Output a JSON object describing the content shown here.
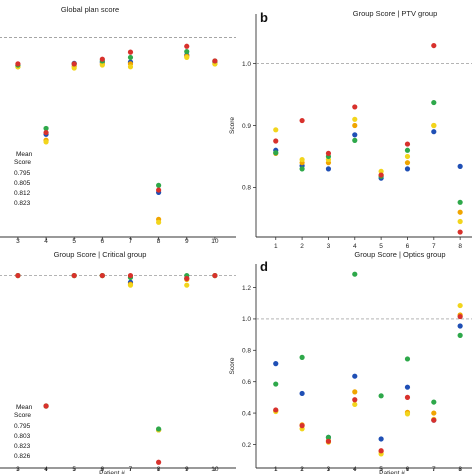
{
  "series_colors": {
    "Blue": "#1f4fb5",
    "Orange": "#f0a500",
    "Yellow": "#f2d51c",
    "Green": "#2ea84a",
    "Red": "#d8312c"
  },
  "chart_data": [
    {
      "type": "scatter",
      "letter": "",
      "title": "Global plan score",
      "xlabel": "",
      "ylabel": "",
      "x_ticks": [
        "3",
        "4",
        "5",
        "6",
        "7",
        "8",
        "9",
        "10"
      ],
      "y_ticks": [],
      "reference_line": 1.0,
      "ylim": [
        0.66,
        1.04
      ],
      "mean_label": [
        "Mean",
        "Score"
      ],
      "mean_values": [
        "0.795",
        "0.805",
        "0.812",
        "0.823"
      ],
      "series": [
        {
          "color": "Blue",
          "x": [
            3,
            4,
            5,
            6,
            7,
            8,
            9,
            10
          ],
          "y": [
            0.952,
            0.835,
            0.956,
            0.958,
            0.958,
            0.736,
            0.97,
            0.958
          ]
        },
        {
          "color": "Orange",
          "x": [
            3,
            4,
            5,
            6,
            7,
            8,
            9,
            10
          ],
          "y": [
            0.95,
            0.825,
            0.951,
            0.955,
            0.955,
            0.69,
            0.968,
            0.955
          ]
        },
        {
          "color": "Yellow",
          "x": [
            3,
            4,
            5,
            6,
            7,
            8,
            9,
            10
          ],
          "y": [
            0.95,
            0.822,
            0.948,
            0.953,
            0.95,
            0.685,
            0.966,
            0.955
          ]
        },
        {
          "color": "Green",
          "x": [
            3,
            4,
            5,
            6,
            7,
            8,
            9,
            10
          ],
          "y": [
            0.953,
            0.845,
            0.955,
            0.96,
            0.966,
            0.748,
            0.976,
            0.96
          ]
        },
        {
          "color": "Red",
          "x": [
            3,
            4,
            5,
            6,
            7,
            8,
            9,
            10
          ],
          "y": [
            0.955,
            0.838,
            0.955,
            0.963,
            0.975,
            0.74,
            0.985,
            0.96
          ]
        }
      ]
    },
    {
      "type": "scatter",
      "letter": "b",
      "title": "Group Score | PTV group",
      "xlabel": "Patient #",
      "ylabel": "Score",
      "x_ticks": [
        "1",
        "2",
        "3",
        "4",
        "5",
        "6",
        "7",
        "8"
      ],
      "y_ticks": [
        "0.8",
        "0.9",
        "1.0"
      ],
      "reference_line": 1.0,
      "ylim": [
        0.72,
        1.08
      ],
      "series": [
        {
          "color": "Blue",
          "x": [
            1,
            2,
            3,
            4,
            5,
            6,
            7,
            8
          ],
          "y": [
            0.86,
            0.835,
            0.83,
            0.885,
            0.815,
            0.83,
            0.89,
            0.834
          ]
        },
        {
          "color": "Orange",
          "x": [
            1,
            2,
            3,
            4,
            5,
            6,
            7,
            8
          ],
          "y": [
            0.855,
            0.84,
            0.84,
            0.9,
            0.82,
            0.84,
            0.9,
            0.76
          ]
        },
        {
          "color": "Yellow",
          "x": [
            1,
            2,
            3,
            4,
            5,
            6,
            7,
            8
          ],
          "y": [
            0.893,
            0.845,
            0.845,
            0.91,
            0.826,
            0.85,
            0.9,
            0.745
          ]
        },
        {
          "color": "Green",
          "x": [
            1,
            2,
            3,
            4,
            5,
            6,
            7,
            8
          ],
          "y": [
            0.856,
            0.83,
            0.85,
            0.876,
            0.818,
            0.86,
            0.937,
            0.776
          ]
        },
        {
          "color": "Red",
          "x": [
            1,
            2,
            3,
            4,
            5,
            6,
            7,
            8
          ],
          "y": [
            0.875,
            0.908,
            0.855,
            0.93,
            0.82,
            0.87,
            1.029,
            0.728
          ]
        }
      ]
    },
    {
      "type": "scatter",
      "letter": "",
      "title": "Group Score | Critical group",
      "xlabel": "Patient #",
      "ylabel": "",
      "x_ticks": [
        "3",
        "4",
        "5",
        "6",
        "7",
        "8",
        "9",
        "10"
      ],
      "y_ticks": [],
      "reference_line": 1.0,
      "ylim": [
        0.0,
        1.06
      ],
      "mean_label": [
        "Mean",
        "Score"
      ],
      "mean_values": [
        "0.795",
        "0.803",
        "0.823",
        "0.826"
      ],
      "series": [
        {
          "color": "Blue",
          "x": [
            3,
            4,
            5,
            6,
            7,
            8,
            9,
            10
          ],
          "y": [
            1.0,
            0.322,
            1.0,
            1.0,
            0.965,
            0.198,
            0.985,
            1.0
          ]
        },
        {
          "color": "Orange",
          "x": [
            3,
            4,
            5,
            6,
            7,
            8,
            9,
            10
          ],
          "y": [
            1.0,
            0.322,
            1.0,
            1.0,
            0.955,
            0.198,
            0.98,
            1.0
          ]
        },
        {
          "color": "Yellow",
          "x": [
            3,
            4,
            5,
            6,
            7,
            8,
            9,
            10
          ],
          "y": [
            1.0,
            0.322,
            1.0,
            1.0,
            0.95,
            0.198,
            0.95,
            1.0
          ]
        },
        {
          "color": "Green",
          "x": [
            3,
            4,
            5,
            6,
            7,
            8,
            9,
            10
          ],
          "y": [
            1.0,
            0.322,
            1.0,
            1.0,
            0.99,
            0.203,
            1.0,
            1.0
          ]
        },
        {
          "color": "Red",
          "x": [
            3,
            4,
            5,
            6,
            7,
            8,
            9,
            10
          ],
          "y": [
            1.0,
            0.322,
            1.0,
            1.0,
            1.0,
            0.03,
            0.985,
            1.0
          ]
        }
      ]
    },
    {
      "type": "scatter",
      "letter": "d",
      "title": "Group Score | Optics group",
      "xlabel": "Patient #",
      "ylabel": "Score",
      "x_ticks": [
        "1",
        "2",
        "3",
        "4",
        "5",
        "6",
        "7",
        "8"
      ],
      "y_ticks": [
        "0.2",
        "0.4",
        "0.6",
        "0.8",
        "1.0",
        "1.2"
      ],
      "reference_line": 1.0,
      "ylim": [
        0.05,
        1.35
      ],
      "series": [
        {
          "color": "Blue",
          "x": [
            1,
            2,
            3,
            4,
            5,
            6,
            7,
            8
          ],
          "y": [
            0.715,
            0.525,
            0.245,
            0.635,
            0.235,
            0.565,
            0.355,
            0.955
          ]
        },
        {
          "color": "Orange",
          "x": [
            1,
            2,
            3,
            4,
            5,
            6,
            7,
            8
          ],
          "y": [
            0.415,
            0.325,
            0.225,
            0.535,
            0.155,
            0.405,
            0.4,
            1.025
          ]
        },
        {
          "color": "Yellow",
          "x": [
            1,
            2,
            3,
            4,
            5,
            6,
            7,
            8
          ],
          "y": [
            0.41,
            0.3,
            0.215,
            0.455,
            0.14,
            0.395,
            0.36,
            1.085
          ]
        },
        {
          "color": "Green",
          "x": [
            1,
            2,
            3,
            4,
            5,
            6,
            7,
            8
          ],
          "y": [
            0.585,
            0.755,
            0.245,
            1.285,
            0.51,
            0.745,
            0.47,
            0.895
          ]
        },
        {
          "color": "Red",
          "x": [
            1,
            2,
            3,
            4,
            5,
            6,
            7,
            8
          ],
          "y": [
            0.42,
            0.32,
            0.22,
            0.485,
            0.16,
            0.5,
            0.355,
            1.015
          ]
        }
      ]
    }
  ]
}
